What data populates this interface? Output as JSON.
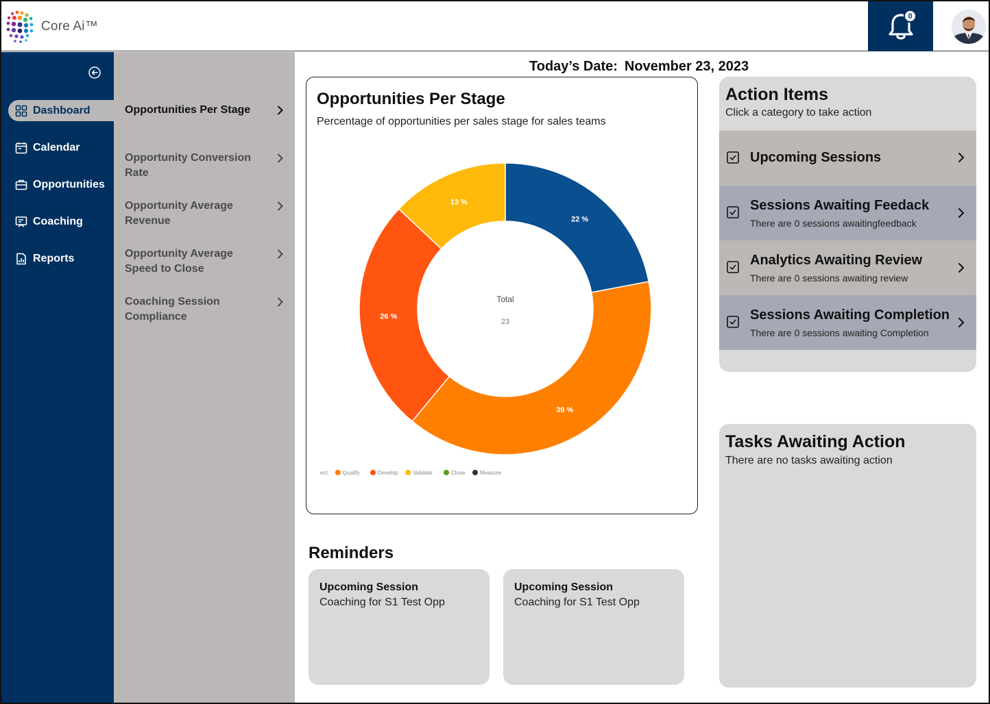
{
  "header": {
    "brand": "Core Ai™",
    "notification_count": "0",
    "colors": {
      "nav_bg": "#00305f",
      "submenu_bg": "#bab7b6"
    }
  },
  "sidebar": {
    "items": [
      {
        "label": "Dashboard",
        "icon": "grid-icon"
      },
      {
        "label": "Calendar",
        "icon": "calendar-icon"
      },
      {
        "label": "Opportunities",
        "icon": "briefcase-icon"
      },
      {
        "label": "Coaching",
        "icon": "presentation-icon"
      },
      {
        "label": "Reports",
        "icon": "report-icon"
      }
    ]
  },
  "submenu": {
    "items": [
      {
        "label": "Opportunities Per Stage"
      },
      {
        "label": "Opportunity Conversion Rate"
      },
      {
        "label": "Opportunity Average Revenue"
      },
      {
        "label": "Opportunity Average Speed to Close"
      },
      {
        "label": "Coaching Session Compliance"
      }
    ]
  },
  "main": {
    "date_label": "Today’s Date:",
    "date_value": "November 23, 2023"
  },
  "chart_card": {
    "title": "Opportunities Per Stage",
    "subtitle": "Percentage of opportunities per sales stage for sales teams"
  },
  "chart_data": {
    "type": "pie",
    "donut": true,
    "center_label": "Total",
    "center_value": "23",
    "slices": [
      {
        "label": "22 %",
        "value": 22,
        "color": "#0a4f8f"
      },
      {
        "label": "39 %",
        "value": 39,
        "color": "#ff7f00"
      },
      {
        "label": "26 %",
        "value": 26,
        "color": "#ff5510"
      },
      {
        "label": "13 %",
        "value": 13,
        "color": "#ffb90a"
      }
    ],
    "legend": [
      {
        "name": "ect",
        "color": ""
      },
      {
        "name": "Qualify",
        "color": "#ff7f00"
      },
      {
        "name": "Develop",
        "color": "#ff5510"
      },
      {
        "name": "Validate",
        "color": "#ffb90a"
      },
      {
        "name": "Close",
        "color": "#5a9e1a"
      },
      {
        "name": "Measure",
        "color": "#333333"
      }
    ],
    "legend_position": "bottom-left"
  },
  "reminders": {
    "title": "Reminders",
    "items": [
      {
        "title": "Upcoming Session",
        "desc": "Coaching for S1 Test Opp"
      },
      {
        "title": "Upcoming Session",
        "desc": "Coaching for S1 Test Opp"
      }
    ]
  },
  "action_items": {
    "title": "Action Items",
    "subtitle": "Click a category to take action",
    "rows": [
      {
        "title": "Upcoming Sessions",
        "desc": ""
      },
      {
        "title": "Sessions Awaiting Feedack",
        "desc": "There are 0 sessions awaitingfeedback"
      },
      {
        "title": "Analytics Awaiting Review",
        "desc": "There are 0 sessions awaiting review"
      },
      {
        "title": "Sessions Awaiting Completion",
        "desc": "There are 0 sessions awaiting Completion"
      }
    ]
  },
  "tasks": {
    "title": "Tasks Awaiting Action",
    "subtitle": "There are no tasks awaiting action"
  }
}
